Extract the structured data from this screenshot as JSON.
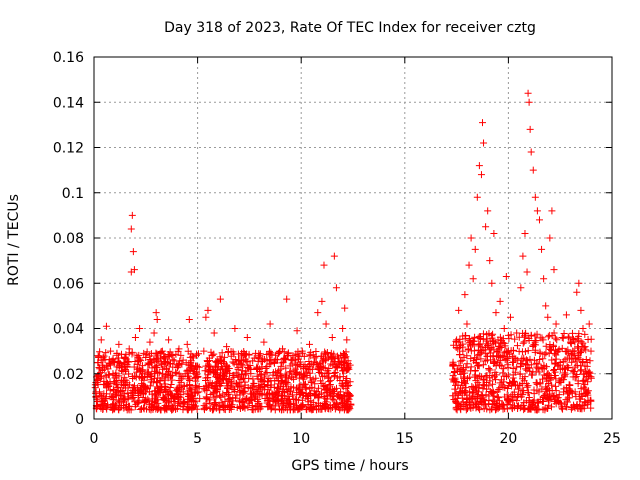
{
  "chart_data": {
    "type": "scatter",
    "title": "Day 318 of 2023, Rate Of TEC Index for receiver cztg",
    "xlabel": "GPS time / hours",
    "ylabel": "ROTI / TECUs",
    "xlim": [
      0,
      25
    ],
    "ylim": [
      0,
      0.16
    ],
    "x_ticks": [
      0,
      5,
      10,
      15,
      20,
      25
    ],
    "y_ticks": [
      0,
      0.02,
      0.04,
      0.06,
      0.08,
      0.1,
      0.12,
      0.14,
      0.16
    ],
    "x_tick_labels": [
      "0",
      "5",
      "10",
      "15",
      "20",
      "25"
    ],
    "y_tick_labels": [
      "0",
      "0.02",
      "0.04",
      "0.06",
      "0.08",
      "0.1",
      "0.12",
      "0.14",
      "0.16"
    ],
    "grid": true,
    "marker": "+",
    "color": "#ff0000",
    "series": [
      {
        "name": "ROTI",
        "points": [
          [
            0.1,
            0.012
          ],
          [
            0.2,
            0.028
          ],
          [
            0.3,
            0.018
          ],
          [
            0.35,
            0.035
          ],
          [
            0.4,
            0.008
          ],
          [
            0.5,
            0.022
          ],
          [
            0.6,
            0.041
          ],
          [
            0.7,
            0.015
          ],
          [
            0.8,
            0.03
          ],
          [
            0.9,
            0.01
          ],
          [
            1.0,
            0.025
          ],
          [
            1.1,
            0.019
          ],
          [
            1.2,
            0.033
          ],
          [
            1.3,
            0.012
          ],
          [
            1.4,
            0.021
          ],
          [
            1.5,
            0.027
          ],
          [
            1.6,
            0.016
          ],
          [
            1.7,
            0.031
          ],
          [
            1.8,
            0.084
          ],
          [
            1.85,
            0.09
          ],
          [
            1.9,
            0.074
          ],
          [
            1.95,
            0.066
          ],
          [
            1.8,
            0.065
          ],
          [
            2.0,
            0.036
          ],
          [
            2.1,
            0.022
          ],
          [
            2.2,
            0.04
          ],
          [
            2.3,
            0.018
          ],
          [
            2.4,
            0.029
          ],
          [
            2.5,
            0.014
          ],
          [
            2.6,
            0.024
          ],
          [
            2.7,
            0.034
          ],
          [
            2.8,
            0.011
          ],
          [
            2.9,
            0.038
          ],
          [
            3.0,
            0.047
          ],
          [
            3.05,
            0.044
          ],
          [
            3.1,
            0.026
          ],
          [
            3.2,
            0.017
          ],
          [
            3.3,
            0.03
          ],
          [
            3.4,
            0.013
          ],
          [
            3.5,
            0.022
          ],
          [
            3.6,
            0.035
          ],
          [
            3.7,
            0.019
          ],
          [
            3.8,
            0.028
          ],
          [
            3.9,
            0.01
          ],
          [
            4.0,
            0.024
          ],
          [
            4.1,
            0.031
          ],
          [
            4.2,
            0.015
          ],
          [
            4.3,
            0.026
          ],
          [
            4.4,
            0.02
          ],
          [
            4.5,
            0.033
          ],
          [
            4.6,
            0.044
          ],
          [
            4.7,
            0.012
          ],
          [
            4.8,
            0.027
          ],
          [
            4.9,
            0.018
          ],
          [
            5.0,
            0.023
          ],
          [
            5.1,
            0.009
          ],
          [
            5.3,
            0.03
          ],
          [
            5.4,
            0.045
          ],
          [
            5.5,
            0.048
          ],
          [
            5.6,
            0.016
          ],
          [
            5.7,
            0.028
          ],
          [
            5.8,
            0.038
          ],
          [
            5.9,
            0.012
          ],
          [
            6.0,
            0.023
          ],
          [
            6.1,
            0.053
          ],
          [
            6.2,
            0.019
          ],
          [
            6.4,
            0.032
          ],
          [
            6.6,
            0.015
          ],
          [
            6.8,
            0.04
          ],
          [
            7.0,
            0.026
          ],
          [
            7.2,
            0.018
          ],
          [
            7.4,
            0.036
          ],
          [
            7.6,
            0.011
          ],
          [
            7.8,
            0.029
          ],
          [
            8.0,
            0.021
          ],
          [
            8.2,
            0.034
          ],
          [
            8.4,
            0.013
          ],
          [
            8.5,
            0.042
          ],
          [
            8.7,
            0.025
          ],
          [
            8.9,
            0.017
          ],
          [
            9.1,
            0.031
          ],
          [
            9.3,
            0.053
          ],
          [
            9.4,
            0.01
          ],
          [
            9.6,
            0.028
          ],
          [
            9.8,
            0.039
          ],
          [
            10.0,
            0.02
          ],
          [
            10.2,
            0.014
          ],
          [
            10.4,
            0.033
          ],
          [
            10.6,
            0.024
          ],
          [
            10.8,
            0.047
          ],
          [
            11.0,
            0.052
          ],
          [
            11.1,
            0.068
          ],
          [
            11.2,
            0.042
          ],
          [
            11.3,
            0.018
          ],
          [
            11.5,
            0.036
          ],
          [
            11.6,
            0.072
          ],
          [
            11.7,
            0.058
          ],
          [
            11.8,
            0.027
          ],
          [
            11.9,
            0.012
          ],
          [
            12.0,
            0.04
          ],
          [
            12.1,
            0.049
          ],
          [
            12.2,
            0.035
          ],
          [
            12.3,
            0.022
          ],
          [
            12.35,
            0.01
          ],
          [
            17.4,
            0.021
          ],
          [
            17.5,
            0.035
          ],
          [
            17.6,
            0.048
          ],
          [
            17.7,
            0.012
          ],
          [
            17.8,
            0.03
          ],
          [
            17.9,
            0.055
          ],
          [
            18.0,
            0.042
          ],
          [
            18.1,
            0.068
          ],
          [
            18.2,
            0.08
          ],
          [
            18.3,
            0.062
          ],
          [
            18.4,
            0.075
          ],
          [
            18.5,
            0.098
          ],
          [
            18.6,
            0.112
          ],
          [
            18.7,
            0.108
          ],
          [
            18.75,
            0.131
          ],
          [
            18.8,
            0.122
          ],
          [
            18.9,
            0.085
          ],
          [
            19.0,
            0.092
          ],
          [
            19.1,
            0.07
          ],
          [
            19.2,
            0.06
          ],
          [
            19.3,
            0.082
          ],
          [
            19.4,
            0.047
          ],
          [
            19.5,
            0.035
          ],
          [
            19.6,
            0.052
          ],
          [
            19.7,
            0.028
          ],
          [
            19.8,
            0.04
          ],
          [
            19.9,
            0.063
          ],
          [
            20.0,
            0.03
          ],
          [
            20.1,
            0.045
          ],
          [
            20.2,
            0.025
          ],
          [
            20.4,
            0.038
          ],
          [
            20.6,
            0.058
          ],
          [
            20.7,
            0.072
          ],
          [
            20.8,
            0.082
          ],
          [
            20.9,
            0.065
          ],
          [
            20.95,
            0.144
          ],
          [
            21.0,
            0.14
          ],
          [
            21.05,
            0.128
          ],
          [
            21.1,
            0.118
          ],
          [
            21.2,
            0.11
          ],
          [
            21.3,
            0.098
          ],
          [
            21.4,
            0.092
          ],
          [
            21.5,
            0.088
          ],
          [
            21.6,
            0.075
          ],
          [
            21.7,
            0.062
          ],
          [
            21.8,
            0.05
          ],
          [
            21.9,
            0.045
          ],
          [
            22.0,
            0.08
          ],
          [
            22.1,
            0.092
          ],
          [
            22.2,
            0.066
          ],
          [
            22.3,
            0.042
          ],
          [
            22.4,
            0.03
          ],
          [
            22.6,
            0.036
          ],
          [
            22.8,
            0.046
          ],
          [
            23.0,
            0.034
          ],
          [
            23.2,
            0.028
          ],
          [
            23.3,
            0.056
          ],
          [
            23.4,
            0.06
          ],
          [
            23.5,
            0.048
          ],
          [
            23.6,
            0.04
          ],
          [
            23.7,
            0.032
          ],
          [
            23.8,
            0.025
          ],
          [
            23.9,
            0.042
          ],
          [
            24.0,
            0.018
          ]
        ]
      }
    ],
    "noise_segments": [
      {
        "x_start": 0.05,
        "x_end": 5.1,
        "y_min": 0.004,
        "y_max": 0.03
      },
      {
        "x_start": 5.3,
        "x_end": 12.4,
        "y_min": 0.004,
        "y_max": 0.03
      },
      {
        "x_start": 17.3,
        "x_end": 24.0,
        "y_min": 0.004,
        "y_max": 0.038
      }
    ]
  }
}
